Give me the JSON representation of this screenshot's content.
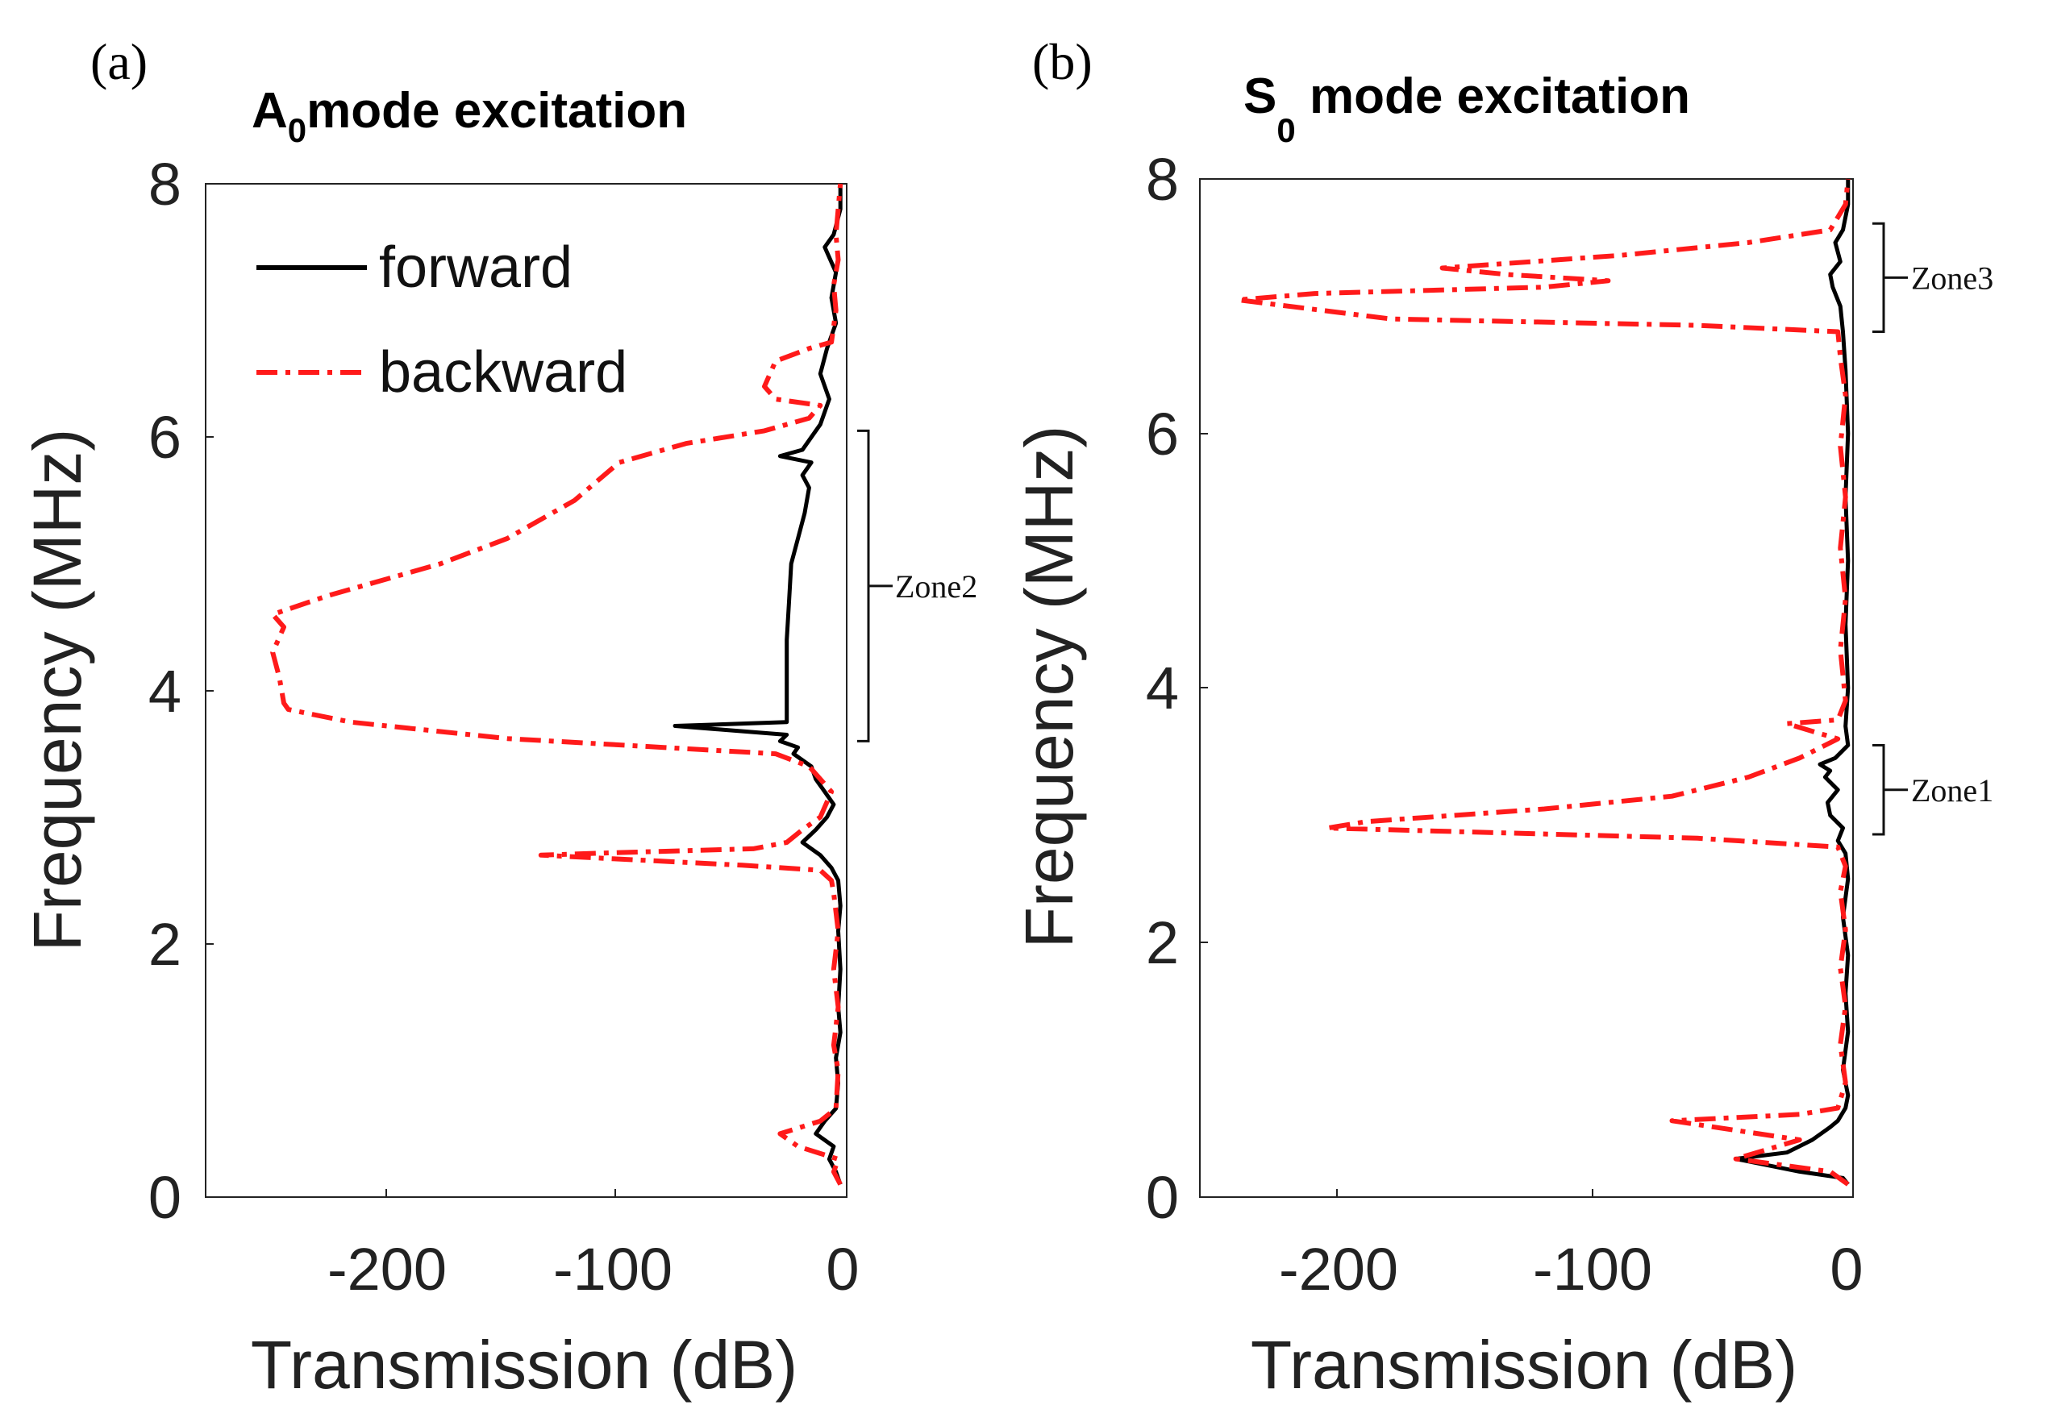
{
  "panels": [
    {
      "tag": "(a)",
      "title_main": "A",
      "title_sub": "0",
      "title_rest": "mode excitation",
      "xlabel": "Transmission (dB)",
      "ylabel": "Frequency (MHz)",
      "xticks": [
        "-200",
        "-100",
        "0"
      ],
      "yticks": [
        "0",
        "2",
        "4",
        "6",
        "8"
      ],
      "legend": {
        "forward": "forward",
        "backward": "backward"
      },
      "zones": [
        {
          "label": "Zone2"
        }
      ]
    },
    {
      "tag": "(b)",
      "title_main": "S",
      "title_sub": "0",
      "title_rest": " mode excitation",
      "xlabel": "Transmission (dB)",
      "ylabel": "Frequency (MHz)",
      "xticks": [
        "-200",
        "-100",
        "0"
      ],
      "yticks": [
        "0",
        "2",
        "4",
        "6",
        "8"
      ],
      "zones": [
        {
          "label": "Zone3"
        },
        {
          "label": "Zone1"
        }
      ]
    }
  ],
  "chart_data": [
    {
      "type": "line",
      "title": "A0 mode excitation",
      "xlabel": "Transmission (dB)",
      "ylabel": "Frequency (MHz)",
      "xlim": [
        -285,
        0
      ],
      "ylim": [
        0,
        8
      ],
      "legend_position": "top-left",
      "series": [
        {
          "name": "forward",
          "color": "#000000",
          "style": "solid",
          "points": [
            [
              -1,
              0.1
            ],
            [
              -3,
              0.2
            ],
            [
              -6,
              0.3
            ],
            [
              -4,
              0.4
            ],
            [
              -12,
              0.5
            ],
            [
              -8,
              0.6
            ],
            [
              -3,
              0.7
            ],
            [
              -2,
              0.9
            ],
            [
              -3,
              1.1
            ],
            [
              -1,
              1.3
            ],
            [
              -2,
              1.5
            ],
            [
              -1,
              1.8
            ],
            [
              -2,
              2.1
            ],
            [
              -1,
              2.3
            ],
            [
              -2,
              2.5
            ],
            [
              -5,
              2.6
            ],
            [
              -10,
              2.7
            ],
            [
              -18,
              2.8
            ],
            [
              -12,
              2.9
            ],
            [
              -7,
              3.0
            ],
            [
              -4,
              3.1
            ],
            [
              -8,
              3.2
            ],
            [
              -12,
              3.3
            ],
            [
              -14,
              3.4
            ],
            [
              -22,
              3.5
            ],
            [
              -20,
              3.55
            ],
            [
              -28,
              3.6
            ],
            [
              -25,
              3.65
            ],
            [
              -75,
              3.72
            ],
            [
              -25,
              3.75
            ],
            [
              -25,
              3.9
            ],
            [
              -25,
              4.1
            ],
            [
              -25,
              4.4
            ],
            [
              -24,
              4.7
            ],
            [
              -23,
              5.0
            ],
            [
              -20,
              5.2
            ],
            [
              -17,
              5.4
            ],
            [
              -15,
              5.6
            ],
            [
              -18,
              5.7
            ],
            [
              -14,
              5.8
            ],
            [
              -28,
              5.85
            ],
            [
              -18,
              5.9
            ],
            [
              -10,
              6.1
            ],
            [
              -6,
              6.3
            ],
            [
              -10,
              6.5
            ],
            [
              -7,
              6.7
            ],
            [
              -3,
              6.9
            ],
            [
              -5,
              7.1
            ],
            [
              -3,
              7.3
            ],
            [
              -8,
              7.5
            ],
            [
              -4,
              7.6
            ],
            [
              -1,
              7.8
            ],
            [
              -1,
              8.0
            ]
          ]
        },
        {
          "name": "backward",
          "color": "#ff1a1a",
          "style": "dashdot",
          "points": [
            [
              -1,
              0.1
            ],
            [
              -4,
              0.2
            ],
            [
              -2,
              0.3
            ],
            [
              -20,
              0.4
            ],
            [
              -28,
              0.5
            ],
            [
              -10,
              0.6
            ],
            [
              -3,
              0.7
            ],
            [
              -2,
              1.0
            ],
            [
              -4,
              1.2
            ],
            [
              -2,
              1.5
            ],
            [
              -4,
              1.8
            ],
            [
              -2,
              2.1
            ],
            [
              -4,
              2.4
            ],
            [
              -5,
              2.5
            ],
            [
              -10,
              2.58
            ],
            [
              -45,
              2.62
            ],
            [
              -135,
              2.7
            ],
            [
              -100,
              2.72
            ],
            [
              -40,
              2.75
            ],
            [
              -25,
              2.8
            ],
            [
              -18,
              2.9
            ],
            [
              -10,
              3.0
            ],
            [
              -5,
              3.2
            ],
            [
              -15,
              3.4
            ],
            [
              -30,
              3.5
            ],
            [
              -80,
              3.55
            ],
            [
              -150,
              3.62
            ],
            [
              -220,
              3.75
            ],
            [
              -248,
              3.85
            ],
            [
              -250,
              3.9
            ],
            [
              -252,
              4.1
            ],
            [
              -255,
              4.3
            ],
            [
              -250,
              4.5
            ],
            [
              -255,
              4.6
            ],
            [
              -230,
              4.75
            ],
            [
              -180,
              5.0
            ],
            [
              -150,
              5.2
            ],
            [
              -120,
              5.5
            ],
            [
              -100,
              5.8
            ],
            [
              -70,
              5.95
            ],
            [
              -35,
              6.05
            ],
            [
              -15,
              6.15
            ],
            [
              -10,
              6.25
            ],
            [
              -30,
              6.3
            ],
            [
              -35,
              6.4
            ],
            [
              -30,
              6.6
            ],
            [
              -15,
              6.7
            ],
            [
              -5,
              6.75
            ],
            [
              -3,
              7.0
            ],
            [
              -4,
              7.2
            ],
            [
              -2,
              7.4
            ],
            [
              -3,
              7.6
            ],
            [
              -1,
              8.0
            ]
          ]
        }
      ],
      "annotations": [
        {
          "text": "Zone2",
          "y_range": [
            3.6,
            6.05
          ]
        }
      ]
    },
    {
      "type": "line",
      "title": "S0 mode excitation",
      "xlabel": "Transmission (dB)",
      "ylabel": "Frequency (MHz)",
      "xlim": [
        -255,
        0
      ],
      "ylim": [
        0,
        8
      ],
      "series": [
        {
          "name": "forward",
          "color": "#000000",
          "style": "solid",
          "points": [
            [
              -1,
              0.1
            ],
            [
              -3,
              0.15
            ],
            [
              -20,
              0.2
            ],
            [
              -45,
              0.3
            ],
            [
              -25,
              0.35
            ],
            [
              -15,
              0.45
            ],
            [
              -8,
              0.55
            ],
            [
              -5,
              0.6
            ],
            [
              -2,
              0.7
            ],
            [
              -1,
              0.8
            ],
            [
              -3,
              1.0
            ],
            [
              -1,
              1.3
            ],
            [
              -2,
              1.6
            ],
            [
              -1,
              1.9
            ],
            [
              -3,
              2.2
            ],
            [
              -1,
              2.5
            ],
            [
              -2,
              2.7
            ],
            [
              -5,
              2.8
            ],
            [
              -3,
              2.9
            ],
            [
              -8,
              3.0
            ],
            [
              -9,
              3.1
            ],
            [
              -5,
              3.2
            ],
            [
              -10,
              3.3
            ],
            [
              -8,
              3.35
            ],
            [
              -12,
              3.4
            ],
            [
              -6,
              3.45
            ],
            [
              -1,
              3.55
            ],
            [
              -2,
              3.7
            ],
            [
              -1,
              4.0
            ],
            [
              -2,
              4.5
            ],
            [
              -1,
              5.0
            ],
            [
              -2,
              5.5
            ],
            [
              -1,
              6.0
            ],
            [
              -2,
              6.5
            ],
            [
              -3,
              6.8
            ],
            [
              -4,
              7.0
            ],
            [
              -7,
              7.15
            ],
            [
              -8,
              7.25
            ],
            [
              -4,
              7.35
            ],
            [
              -6,
              7.5
            ],
            [
              -3,
              7.6
            ],
            [
              -1,
              7.8
            ],
            [
              -1,
              8.0
            ]
          ]
        },
        {
          "name": "backward",
          "color": "#ff1a1a",
          "style": "dashdot",
          "points": [
            [
              -1,
              0.1
            ],
            [
              -8,
              0.2
            ],
            [
              -45,
              0.3
            ],
            [
              -20,
              0.45
            ],
            [
              -70,
              0.6
            ],
            [
              -20,
              0.65
            ],
            [
              -5,
              0.7
            ],
            [
              -2,
              0.9
            ],
            [
              -4,
              1.2
            ],
            [
              -2,
              1.5
            ],
            [
              -4,
              1.8
            ],
            [
              -2,
              2.1
            ],
            [
              -4,
              2.4
            ],
            [
              -2,
              2.6
            ],
            [
              -5,
              2.75
            ],
            [
              -60,
              2.82
            ],
            [
              -205,
              2.9
            ],
            [
              -190,
              2.95
            ],
            [
              -120,
              3.05
            ],
            [
              -70,
              3.15
            ],
            [
              -40,
              3.3
            ],
            [
              -20,
              3.45
            ],
            [
              -5,
              3.6
            ],
            [
              -25,
              3.72
            ],
            [
              -5,
              3.75
            ],
            [
              -2,
              3.9
            ],
            [
              -4,
              4.3
            ],
            [
              -2,
              4.7
            ],
            [
              -4,
              5.1
            ],
            [
              -2,
              5.5
            ],
            [
              -4,
              5.9
            ],
            [
              -2,
              6.3
            ],
            [
              -4,
              6.6
            ],
            [
              -5,
              6.8
            ],
            [
              -60,
              6.85
            ],
            [
              -180,
              6.9
            ],
            [
              -240,
              7.05
            ],
            [
              -210,
              7.1
            ],
            [
              -120,
              7.15
            ],
            [
              -95,
              7.2
            ],
            [
              -135,
              7.25
            ],
            [
              -160,
              7.3
            ],
            [
              -90,
              7.4
            ],
            [
              -40,
              7.5
            ],
            [
              -8,
              7.6
            ],
            [
              -2,
              7.8
            ],
            [
              -1,
              8.0
            ]
          ]
        }
      ],
      "annotations": [
        {
          "text": "Zone3",
          "y_range": [
            6.8,
            7.65
          ]
        },
        {
          "text": "Zone1",
          "y_range": [
            2.85,
            3.55
          ]
        }
      ]
    }
  ]
}
